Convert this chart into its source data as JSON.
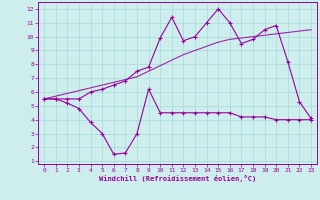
{
  "title": "",
  "xlabel": "Windchill (Refroidissement éolien,°C)",
  "ylabel": "",
  "background_color": "#ceeeed",
  "grid_color": "#aadddd",
  "line_color": "#990099",
  "xlim": [
    -0.5,
    23.5
  ],
  "ylim": [
    0.8,
    12.5
  ],
  "xticks": [
    0,
    1,
    2,
    3,
    4,
    5,
    6,
    7,
    8,
    9,
    10,
    11,
    12,
    13,
    14,
    15,
    16,
    17,
    18,
    19,
    20,
    21,
    22,
    23
  ],
  "yticks": [
    1,
    2,
    3,
    4,
    5,
    6,
    7,
    8,
    9,
    10,
    11,
    12
  ],
  "series1_x": [
    0,
    1,
    2,
    3,
    4,
    5,
    6,
    7,
    8,
    9,
    10,
    11,
    12,
    13,
    14,
    15,
    16,
    17,
    18,
    19,
    20,
    21,
    22,
    23
  ],
  "series1_y": [
    5.5,
    5.5,
    5.5,
    5.5,
    6.0,
    6.2,
    6.5,
    6.8,
    7.5,
    7.8,
    9.9,
    11.4,
    9.7,
    10.0,
    11.0,
    12.0,
    11.0,
    9.5,
    9.8,
    10.5,
    10.8,
    8.2,
    5.3,
    4.1
  ],
  "series2_x": [
    0,
    1,
    2,
    3,
    4,
    5,
    6,
    7,
    8,
    9,
    10,
    11,
    12,
    13,
    14,
    15,
    16,
    17,
    18,
    19,
    20,
    21,
    22,
    23
  ],
  "series2_y": [
    5.5,
    5.7,
    5.9,
    6.1,
    6.3,
    6.5,
    6.7,
    6.9,
    7.1,
    7.5,
    7.9,
    8.3,
    8.7,
    9.0,
    9.3,
    9.6,
    9.8,
    9.9,
    10.0,
    10.1,
    10.2,
    10.3,
    10.4,
    10.5
  ],
  "series3_x": [
    0,
    1,
    2,
    3,
    4,
    5,
    6,
    7,
    8,
    9,
    10,
    11,
    12,
    13,
    14,
    15,
    16,
    17,
    18,
    19,
    20,
    21,
    22,
    23
  ],
  "series3_y": [
    5.5,
    5.5,
    5.2,
    4.8,
    3.8,
    3.0,
    1.5,
    1.6,
    3.0,
    6.2,
    4.5,
    4.5,
    4.5,
    4.5,
    4.5,
    4.5,
    4.5,
    4.2,
    4.2,
    4.2,
    4.0,
    4.0,
    4.0,
    4.0
  ]
}
